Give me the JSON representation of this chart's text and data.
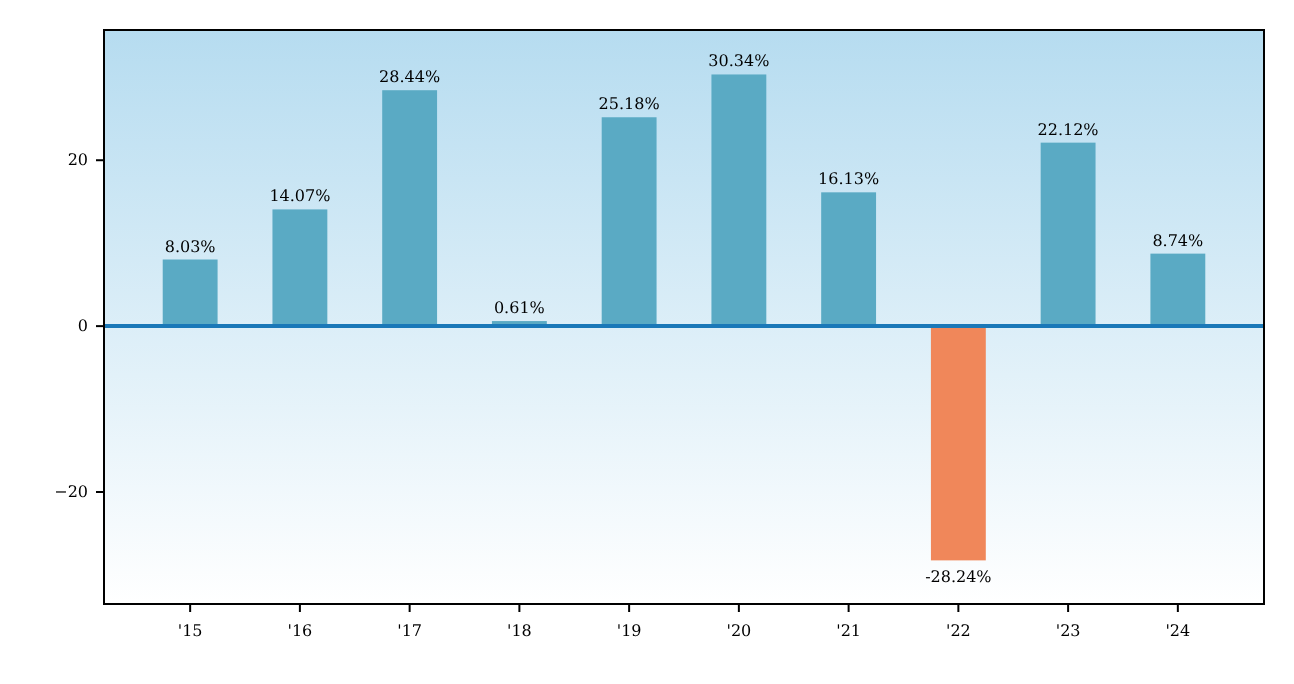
{
  "chart_data": {
    "type": "bar",
    "categories": [
      "'15",
      "'16",
      "'17",
      "'18",
      "'19",
      "'20",
      "'21",
      "'22",
      "'23",
      "'24"
    ],
    "values": [
      8.03,
      14.07,
      28.44,
      0.61,
      25.18,
      30.34,
      16.13,
      -28.24,
      22.12,
      8.74
    ],
    "colors": [
      "#5aaac4",
      "#5aaac4",
      "#5aaac4",
      "#5aaac4",
      "#5aaac4",
      "#5aaac4",
      "#5aaac4",
      "#f0875a",
      "#5aaac4",
      "#5aaac4"
    ],
    "value_labels": [
      "8.03%",
      "14.07%",
      "28.44%",
      "0.61%",
      "25.18%",
      "30.34%",
      "16.13%",
      "-28.24%",
      "22.12%",
      "8.74%"
    ],
    "ylim": [
      -33.5,
      35.7
    ],
    "yticks": [
      -20,
      0,
      20
    ],
    "ref_lines": [
      {
        "axis": "y",
        "value": 0,
        "color": "#1a78b8"
      }
    ],
    "grid": false
  }
}
